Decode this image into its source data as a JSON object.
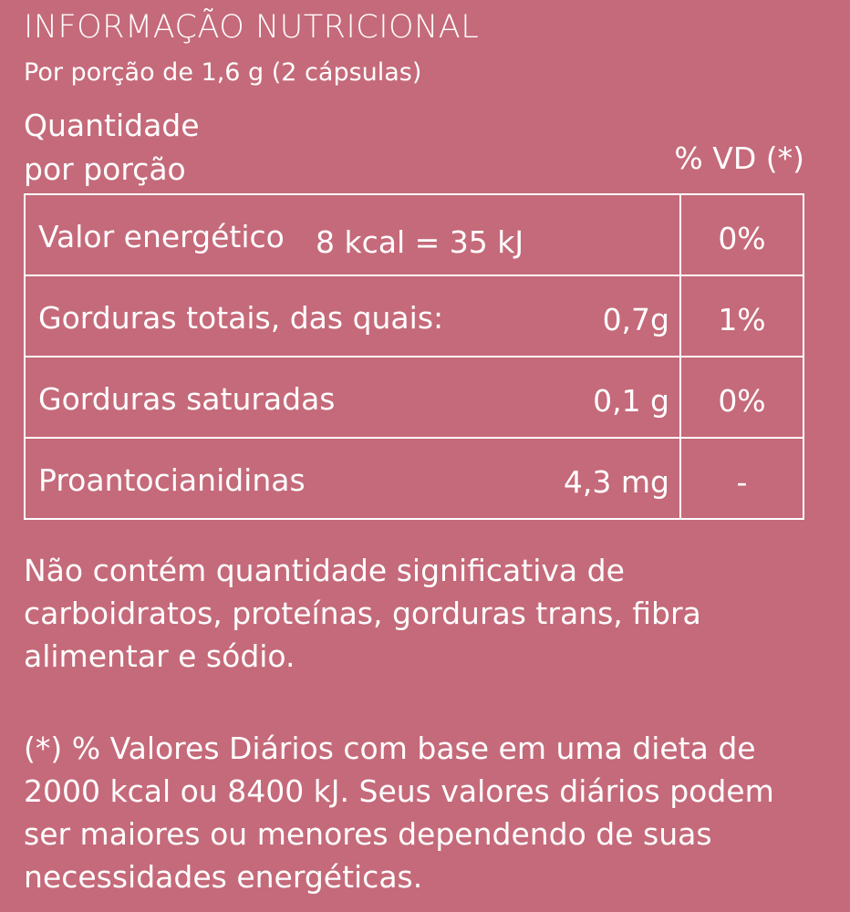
{
  "header": {
    "title": "INFORMAÇÃO NUTRICIONAL",
    "serving": "Por porção de 1,6 g (2 cápsulas)",
    "quantity_line1": "Quantidade",
    "quantity_line2": "por porção",
    "vd_label": "% VD (*)"
  },
  "table": {
    "rows": [
      {
        "nutrient": "Valor energético",
        "amount": "8 kcal = 35 kJ",
        "vd": "0%"
      },
      {
        "nutrient": "Gorduras totais, das quais:",
        "amount": "0,7g",
        "vd": "1%"
      },
      {
        "nutrient": "Gorduras saturadas",
        "amount": "0,1 g",
        "vd": "0%"
      },
      {
        "nutrient": "Proantocianidinas",
        "amount": "4,3 mg",
        "vd": "-"
      }
    ]
  },
  "notes": {
    "not_significant": "Não contém quantidade significativa de carboidratos, proteínas, gorduras trans, fibra alimentar e sódio.",
    "daily_values": "(*) % Valores Diários com base em uma dieta de 2000 kcal ou 8400 kJ. Seus valores diários podem ser maiores ou menores dependendo de suas necessidades energéticas."
  }
}
